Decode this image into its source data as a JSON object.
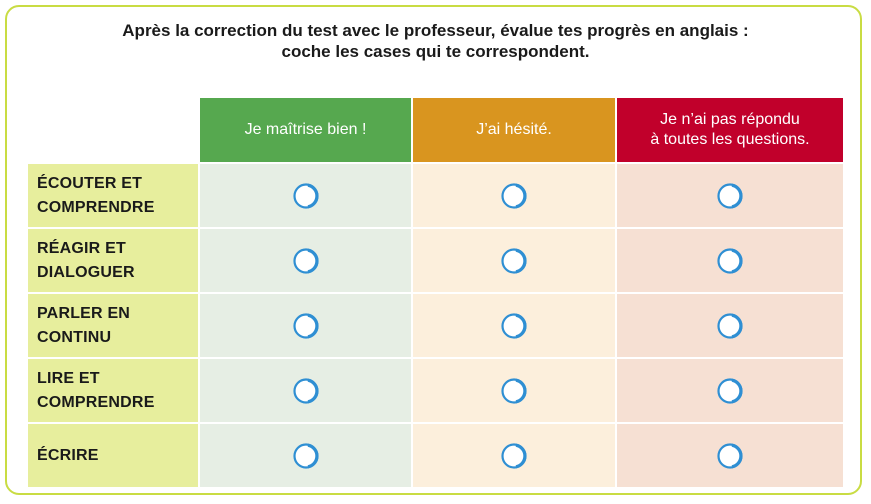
{
  "instructions": {
    "line1": "Après la correction du test avec le professeur, évalue tes progrès en anglais :",
    "line2": "coche les cases qui te correspondent."
  },
  "columns": [
    {
      "label": "Je maîtrise bien !",
      "color": "#56a84f",
      "cell_color": "#e6eee4"
    },
    {
      "label": "J’ai hésité.",
      "color": "#d9951f",
      "cell_color": "#fcefdc"
    },
    {
      "label": "Je n’ai pas répondu\nà toutes les questions.",
      "color": "#c1002b",
      "cell_color": "#f6e0d3"
    }
  ],
  "rows": [
    {
      "label": "ÉCOUTER ET\nCOMPRENDRE"
    },
    {
      "label": "RÉAGIR ET\nDIALOGUER"
    },
    {
      "label": "PARLER EN\nCONTINU"
    },
    {
      "label": "LIRE ET\nCOMPRENDRE"
    },
    {
      "label": "ÉCRIRE"
    }
  ],
  "colors": {
    "frame_border": "#c9dc43",
    "row_label_bg": "#e7ee9d",
    "checkbox_stroke": "#2f8fd3"
  },
  "checkbox_icon": "open-circle-icon"
}
